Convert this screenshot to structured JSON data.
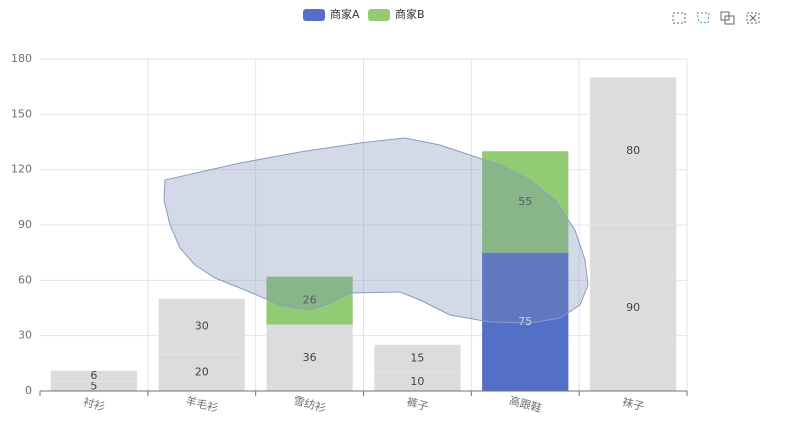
{
  "chart_data": {
    "type": "bar",
    "stacked": true,
    "grid": true,
    "categories": [
      "衬衫",
      "羊毛衫",
      "雪纺衫",
      "裤子",
      "高跟鞋",
      "袜子"
    ],
    "series": [
      {
        "name": "商家A",
        "color": "#5470c6",
        "values": [
          5,
          20,
          36,
          10,
          75,
          90
        ],
        "selected": [
          false,
          false,
          false,
          false,
          true,
          false
        ]
      },
      {
        "name": "商家B",
        "color": "#91cc75",
        "values": [
          6,
          30,
          26,
          15,
          55,
          80
        ],
        "selected": [
          false,
          false,
          true,
          false,
          true,
          false
        ]
      }
    ],
    "inactive_color": "#dcdcdc",
    "ylim": [
      0,
      180
    ],
    "yticks": [
      0,
      30,
      60,
      90,
      120,
      150,
      180
    ]
  }
}
